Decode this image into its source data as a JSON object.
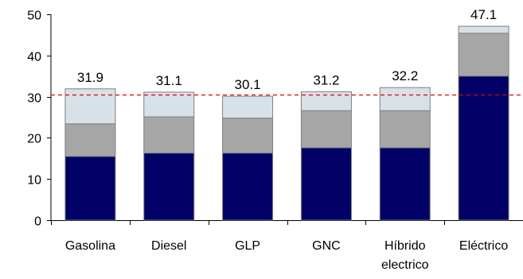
{
  "chart_data": {
    "type": "bar",
    "stacked": true,
    "categories": [
      "Gasolina",
      "Diesel",
      "GLP",
      "GNC",
      "Híbrido electrico",
      "Eléctrico"
    ],
    "category_lines": [
      [
        "Gasolina"
      ],
      [
        "Diesel"
      ],
      [
        "GLP"
      ],
      [
        "GNC"
      ],
      [
        "Híbrido",
        "electrico"
      ],
      [
        "Eléctrico"
      ]
    ],
    "series": [
      {
        "values": [
          15.5,
          16.3,
          16.3,
          17.6,
          17.6,
          35.0
        ],
        "color": "#000066"
      },
      {
        "values": [
          7.9,
          8.8,
          8.5,
          9.0,
          9.0,
          10.4
        ],
        "color": "#a6a6a6"
      },
      {
        "values": [
          8.5,
          6.0,
          5.3,
          4.6,
          5.6,
          1.7
        ],
        "color": "#d9e1e8"
      }
    ],
    "totals": [
      "31.9",
      "31.1",
      "30.1",
      "31.2",
      "32.2",
      "47.1"
    ],
    "yticks": [
      0,
      10,
      20,
      30,
      40,
      50
    ],
    "ylim": [
      0,
      50
    ],
    "reference_line": {
      "y": 30.4,
      "color": "#e00000",
      "style": "dashed"
    },
    "bar_outline": "#808080",
    "grid": false,
    "legend": "none"
  }
}
